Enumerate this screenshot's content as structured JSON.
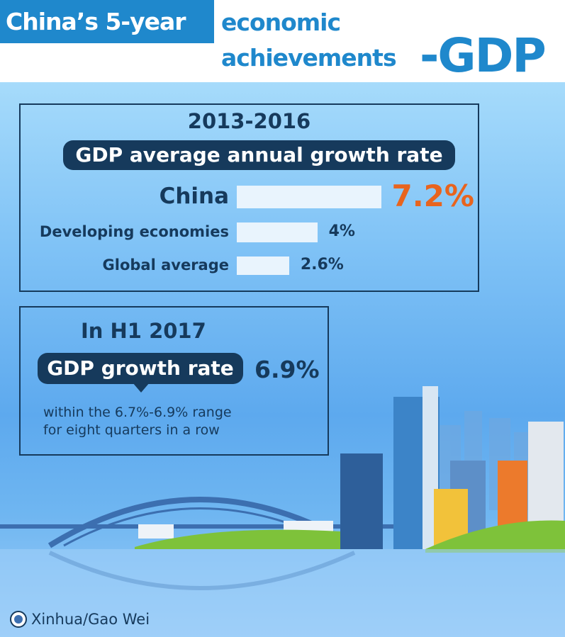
{
  "header": {
    "line1": "China’s 5-year",
    "line2": "economic",
    "line3": "achievements",
    "line4": "-GDP"
  },
  "section1": {
    "years": "2013-2016",
    "subtitle": "GDP average annual growth rate"
  },
  "chart_data": {
    "type": "bar",
    "orientation": "horizontal",
    "title": "GDP average annual growth rate",
    "categories": [
      "China",
      "Developing economies",
      "Global average"
    ],
    "values": [
      7.2,
      4,
      2.6
    ],
    "labels": [
      "7.2%",
      "4%",
      "2.6%"
    ],
    "unit": "%",
    "colors": {
      "bar": "#e9f4fd",
      "highlight_label": "#e8641e",
      "label": "#163a5c"
    }
  },
  "section2": {
    "period": "In H1 2017",
    "label": "GDP growth rate",
    "value": "6.9%",
    "note1": "within the 6.7%-6.9% range",
    "note2": "for eight quarters in a row"
  },
  "credit": {
    "text": "Xinhua/Gao Wei",
    "icon": "xinhua-logo"
  }
}
